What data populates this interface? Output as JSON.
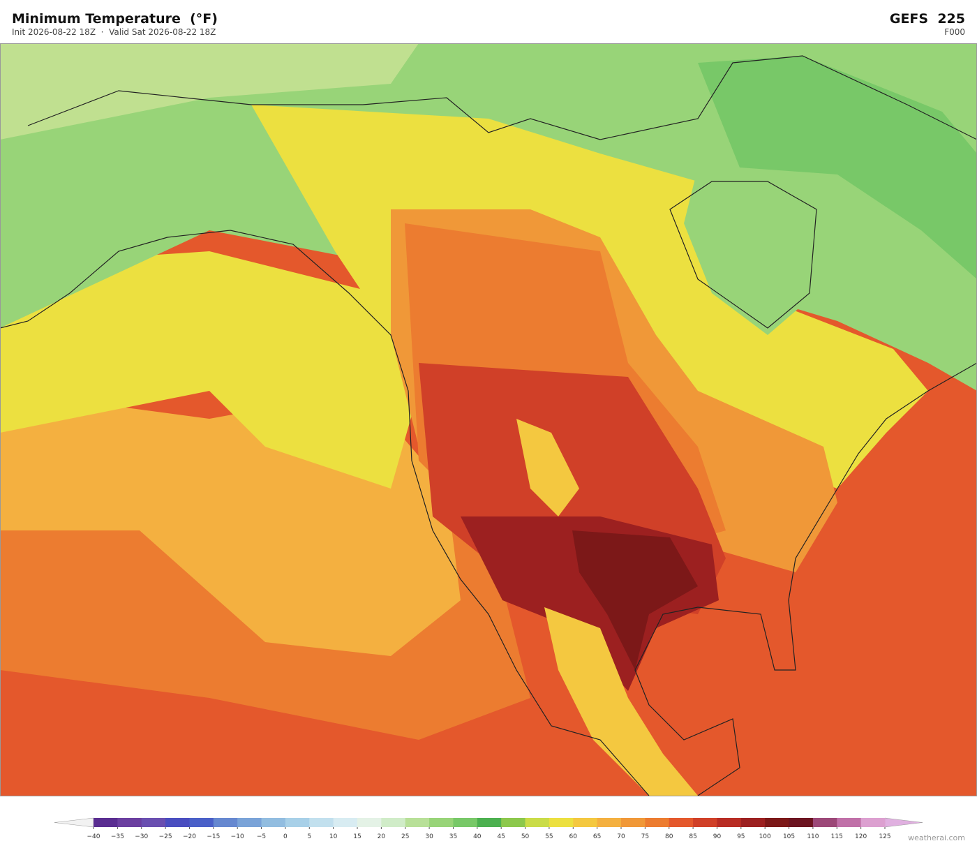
{
  "header": {
    "title": "Minimum Temperature  (°F)",
    "subtitle": "Init 2026-08-22 18Z  ·  Valid Sat 2026-08-22 18Z",
    "model": "GEFS  225",
    "forecast_hour": "F000"
  },
  "colorbar": {
    "ticks": [
      {
        "value": -40,
        "label": "−40"
      },
      {
        "value": -35,
        "label": "−35"
      },
      {
        "value": -30,
        "label": "−30"
      },
      {
        "value": -25,
        "label": "−25"
      },
      {
        "value": -20,
        "label": "−20"
      },
      {
        "value": -15,
        "label": "−15"
      },
      {
        "value": -10,
        "label": "−10"
      },
      {
        "value": -5,
        "label": "−5"
      },
      0,
      5,
      10,
      15,
      20,
      25,
      30,
      35,
      40,
      45,
      50,
      55,
      60,
      65,
      70,
      75,
      80,
      85,
      90,
      95,
      100,
      105,
      110,
      115,
      120,
      125
    ],
    "colors": [
      "#5a2d91",
      "#6b3fa0",
      "#6a4fb0",
      "#4a4ec0",
      "#4a60c8",
      "#6688d0",
      "#7aa3d8",
      "#92bde0",
      "#a8d0e8",
      "#c2e0ee",
      "#d8ecf2",
      "#e4f2e6",
      "#d0ecc8",
      "#b8e098",
      "#98d478",
      "#78c868",
      "#4cb050",
      "#8cc84c",
      "#cadc48",
      "#ece040",
      "#f4c840",
      "#f4b040",
      "#f09838",
      "#ec7c30",
      "#e4582c",
      "#d04028",
      "#b82c24",
      "#9c2020",
      "#7c1818",
      "#6c1420",
      "#9c4878",
      "#c070a8",
      "#dca0d0"
    ],
    "under_color": "#f2f2f2",
    "over_color": "#e0b0e0"
  },
  "footer": {
    "watermark": "weatherai.com"
  }
}
